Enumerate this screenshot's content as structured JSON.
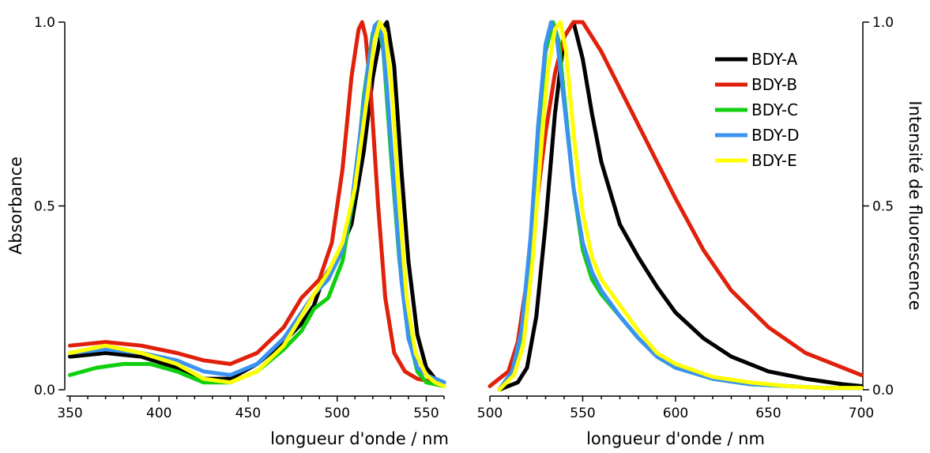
{
  "chart_data": [
    {
      "type": "line",
      "panel": "absorbance",
      "xlabel": "longueur d'onde / nm",
      "ylabel": "Absorbance",
      "xlim": [
        348,
        560
      ],
      "ylim": [
        0,
        1
      ],
      "xticks": [
        350,
        400,
        450,
        500,
        550
      ],
      "yticks": [
        0,
        0.5,
        1
      ],
      "ytick_labels": [
        "0.0",
        "0.5",
        "1.0"
      ],
      "series": [
        {
          "name": "BDY-A",
          "color": "#000000",
          "x": [
            350,
            370,
            390,
            410,
            425,
            440,
            455,
            470,
            480,
            487,
            492,
            500,
            508,
            515,
            520,
            525,
            528,
            532,
            536,
            540,
            545,
            550,
            555,
            560
          ],
          "y": [
            0.09,
            0.1,
            0.09,
            0.06,
            0.03,
            0.03,
            0.07,
            0.13,
            0.18,
            0.23,
            0.3,
            0.36,
            0.45,
            0.65,
            0.85,
            0.98,
            1.0,
            0.88,
            0.6,
            0.35,
            0.15,
            0.06,
            0.03,
            0.02
          ]
        },
        {
          "name": "BDY-B",
          "color": "#e0200a",
          "x": [
            350,
            370,
            390,
            410,
            425,
            440,
            455,
            470,
            480,
            490,
            497,
            503,
            508,
            512,
            514,
            516,
            519,
            523,
            527,
            532,
            538,
            545,
            550,
            555,
            560
          ],
          "y": [
            0.12,
            0.13,
            0.12,
            0.1,
            0.08,
            0.07,
            0.1,
            0.17,
            0.25,
            0.3,
            0.4,
            0.6,
            0.85,
            0.98,
            1.0,
            0.96,
            0.8,
            0.5,
            0.25,
            0.1,
            0.05,
            0.03,
            0.025,
            0.02,
            0.02
          ]
        },
        {
          "name": "BDY-C",
          "color": "#0fcf0f",
          "x": [
            350,
            365,
            380,
            395,
            410,
            425,
            440,
            455,
            470,
            480,
            487,
            495,
            503,
            510,
            515,
            520,
            523,
            526,
            530,
            535,
            540,
            545,
            550,
            560
          ],
          "y": [
            0.04,
            0.06,
            0.07,
            0.07,
            0.05,
            0.02,
            0.02,
            0.05,
            0.11,
            0.16,
            0.22,
            0.25,
            0.35,
            0.55,
            0.8,
            0.97,
            1.0,
            0.92,
            0.65,
            0.35,
            0.15,
            0.05,
            0.02,
            0.01
          ]
        },
        {
          "name": "BDY-D",
          "color": "#3a93f0",
          "x": [
            350,
            370,
            390,
            410,
            425,
            440,
            455,
            470,
            480,
            487,
            495,
            503,
            508,
            513,
            518,
            521,
            523,
            525,
            528,
            532,
            536,
            540,
            545,
            550,
            555,
            560
          ],
          "y": [
            0.1,
            0.11,
            0.1,
            0.08,
            0.05,
            0.04,
            0.07,
            0.14,
            0.21,
            0.26,
            0.3,
            0.38,
            0.5,
            0.7,
            0.9,
            0.99,
            1.0,
            0.97,
            0.82,
            0.55,
            0.3,
            0.14,
            0.06,
            0.04,
            0.03,
            0.02
          ]
        },
        {
          "name": "BDY-E",
          "color": "#ffff00",
          "x": [
            350,
            370,
            390,
            410,
            425,
            440,
            455,
            470,
            480,
            487,
            495,
            503,
            510,
            517,
            521,
            524,
            527,
            531,
            535,
            539,
            544,
            550,
            555,
            560
          ],
          "y": [
            0.1,
            0.12,
            0.1,
            0.07,
            0.03,
            0.02,
            0.05,
            0.12,
            0.2,
            0.26,
            0.32,
            0.4,
            0.55,
            0.8,
            0.95,
            1.0,
            0.97,
            0.8,
            0.5,
            0.25,
            0.1,
            0.04,
            0.02,
            0.01
          ]
        }
      ]
    },
    {
      "type": "line",
      "panel": "fluorescence",
      "xlabel": "longueur d'onde / nm",
      "ylabel": "Intensité de fluorescence",
      "xlim": [
        500,
        700
      ],
      "ylim": [
        0,
        1
      ],
      "xticks": [
        500,
        550,
        600,
        650,
        700
      ],
      "yticks": [
        0,
        0.5,
        1
      ],
      "ytick_labels": [
        "0.0",
        "0.5",
        "1.0"
      ],
      "legend": "top-right",
      "series": [
        {
          "name": "BDY-A",
          "color": "#000000",
          "x": [
            505,
            515,
            520,
            525,
            530,
            535,
            540,
            545,
            550,
            555,
            560,
            570,
            580,
            590,
            600,
            615,
            630,
            650,
            670,
            690,
            700
          ],
          "y": [
            0.0,
            0.02,
            0.06,
            0.2,
            0.45,
            0.75,
            0.96,
            1.0,
            0.9,
            0.75,
            0.62,
            0.45,
            0.36,
            0.28,
            0.21,
            0.14,
            0.09,
            0.05,
            0.03,
            0.015,
            0.01
          ]
        },
        {
          "name": "BDY-B",
          "color": "#e0200a",
          "x": [
            500,
            510,
            515,
            520,
            525,
            530,
            535,
            540,
            545,
            550,
            555,
            560,
            570,
            580,
            590,
            600,
            615,
            630,
            650,
            670,
            690,
            700
          ],
          "y": [
            0.01,
            0.05,
            0.13,
            0.3,
            0.5,
            0.7,
            0.86,
            0.96,
            1.0,
            1.0,
            0.96,
            0.92,
            0.82,
            0.72,
            0.62,
            0.52,
            0.38,
            0.27,
            0.17,
            0.1,
            0.06,
            0.04
          ]
        },
        {
          "name": "BDY-C",
          "color": "#0fcf0f",
          "x": [
            505,
            512,
            517,
            522,
            526,
            530,
            534,
            537,
            540,
            545,
            550,
            555,
            560,
            570,
            580,
            590,
            600,
            620,
            640,
            660,
            680,
            700
          ],
          "y": [
            0.0,
            0.05,
            0.15,
            0.4,
            0.7,
            0.92,
            1.0,
            0.95,
            0.8,
            0.55,
            0.38,
            0.3,
            0.26,
            0.2,
            0.14,
            0.09,
            0.06,
            0.03,
            0.015,
            0.01,
            0.005,
            0.005
          ]
        },
        {
          "name": "BDY-D",
          "color": "#3a93f0",
          "x": [
            505,
            512,
            517,
            522,
            526,
            530,
            533,
            536,
            540,
            545,
            550,
            555,
            560,
            570,
            580,
            590,
            600,
            620,
            640,
            660,
            680,
            700
          ],
          "y": [
            0.0,
            0.05,
            0.16,
            0.42,
            0.72,
            0.94,
            1.0,
            0.96,
            0.78,
            0.55,
            0.4,
            0.32,
            0.27,
            0.2,
            0.14,
            0.09,
            0.06,
            0.03,
            0.015,
            0.01,
            0.005,
            0.005
          ]
        },
        {
          "name": "BDY-E",
          "color": "#ffff00",
          "x": [
            505,
            513,
            518,
            523,
            527,
            531,
            535,
            538,
            541,
            545,
            550,
            555,
            560,
            570,
            580,
            590,
            600,
            620,
            640,
            660,
            680,
            700
          ],
          "y": [
            0.0,
            0.04,
            0.12,
            0.35,
            0.62,
            0.86,
            0.98,
            1.0,
            0.92,
            0.7,
            0.48,
            0.36,
            0.3,
            0.23,
            0.16,
            0.1,
            0.07,
            0.035,
            0.02,
            0.01,
            0.005,
            0.005
          ]
        }
      ]
    }
  ]
}
